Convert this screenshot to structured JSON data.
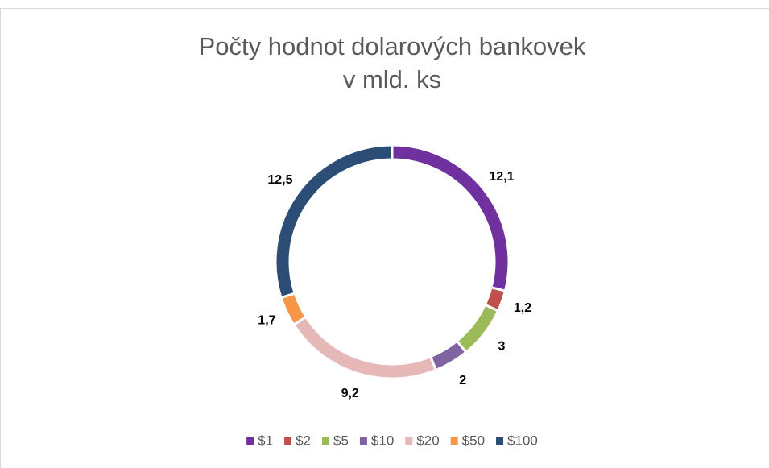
{
  "chart_data": {
    "type": "donut",
    "title": [
      "Počty hodnot dolarových bankovek",
      "v mld. ks"
    ],
    "categories": [
      "$1",
      "$2",
      "$5",
      "$10",
      "$20",
      "$50",
      "$100"
    ],
    "values": [
      12.1,
      1.2,
      3,
      2,
      9.2,
      1.7,
      12.5
    ],
    "value_labels": [
      "12,1",
      "1,2",
      "3",
      "2",
      "9,2",
      "1,7",
      "12,5"
    ],
    "colors": [
      "#7030a0",
      "#c0504d",
      "#9bbb59",
      "#8064a2",
      "#e6b9b8",
      "#f79646",
      "#2c4d75"
    ],
    "legend": "bottom"
  }
}
